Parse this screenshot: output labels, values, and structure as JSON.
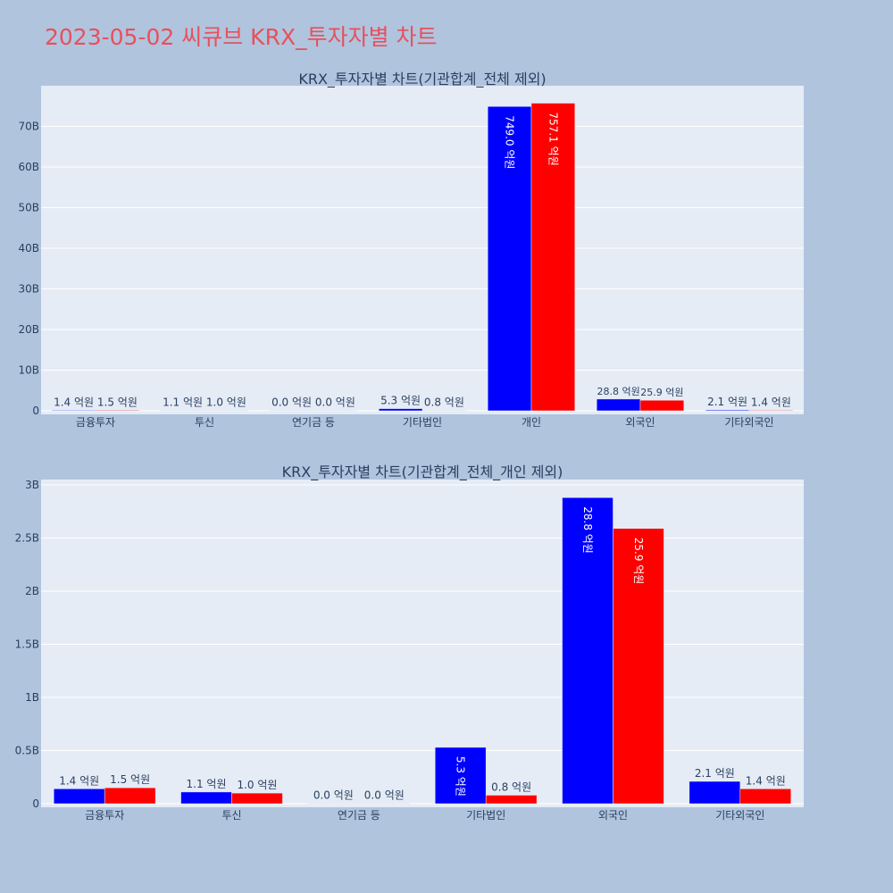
{
  "page_title": "2023-05-02 씨큐브 KRX_투자자별 차트",
  "chart_data": [
    {
      "type": "bar",
      "title": "KRX_투자자별 차트(기관합계_전체 제외)",
      "categories": [
        "금융투자",
        "투신",
        "연기금 등",
        "기타법인",
        "개인",
        "외국인",
        "기타외국인"
      ],
      "ylim": [
        0,
        80000000000
      ],
      "yticks": [
        {
          "value": 0,
          "label": "0"
        },
        {
          "value": 10000000000,
          "label": "10B"
        },
        {
          "value": 20000000000,
          "label": "20B"
        },
        {
          "value": 30000000000,
          "label": "30B"
        },
        {
          "value": 40000000000,
          "label": "40B"
        },
        {
          "value": 50000000000,
          "label": "50B"
        },
        {
          "value": 60000000000,
          "label": "60B"
        },
        {
          "value": 70000000000,
          "label": "70B"
        }
      ],
      "grid": true,
      "series": [
        {
          "color": "#0000ff",
          "values": [
            140000000,
            110000000,
            0,
            530000000,
            74900000000,
            2880000000,
            210000000
          ],
          "labels": [
            "1.4 억원",
            "1.1 억원",
            "0.0 억원",
            "5.3 억원",
            "749.0 억원",
            "28.8 억원",
            "2.1 억원"
          ]
        },
        {
          "color": "#ff0000",
          "values": [
            150000000,
            100000000,
            0,
            80000000,
            75710000000,
            2590000000,
            140000000
          ],
          "labels": [
            "1.5 억원",
            "1.0 억원",
            "0.0 억원",
            "0.8 억원",
            "757.1 억원",
            "25.9 억원",
            "1.4 억원"
          ]
        }
      ]
    },
    {
      "type": "bar",
      "title": "KRX_투자자별 차트(기관합계_전체_개인 제외)",
      "categories": [
        "금융투자",
        "투신",
        "연기금 등",
        "기타법인",
        "외국인",
        "기타외국인"
      ],
      "ylim": [
        0,
        3050000000
      ],
      "yticks": [
        {
          "value": 0,
          "label": "0"
        },
        {
          "value": 500000000,
          "label": "0.5B"
        },
        {
          "value": 1000000000,
          "label": "1B"
        },
        {
          "value": 1500000000,
          "label": "1.5B"
        },
        {
          "value": 2000000000,
          "label": "2B"
        },
        {
          "value": 2500000000,
          "label": "2.5B"
        },
        {
          "value": 3000000000,
          "label": "3B"
        }
      ],
      "grid": true,
      "series": [
        {
          "color": "#0000ff",
          "values": [
            140000000,
            110000000,
            0,
            530000000,
            2880000000,
            210000000
          ],
          "labels": [
            "1.4 억원",
            "1.1 억원",
            "0.0 억원",
            "5.3 억원",
            "28.8 억원",
            "2.1 억원"
          ]
        },
        {
          "color": "#ff0000",
          "values": [
            150000000,
            100000000,
            0,
            80000000,
            2590000000,
            140000000
          ],
          "labels": [
            "1.5 억원",
            "1.0 억원",
            "0.0 억원",
            "0.8 억원",
            "25.9 억원",
            "1.4 억원"
          ]
        }
      ]
    }
  ]
}
